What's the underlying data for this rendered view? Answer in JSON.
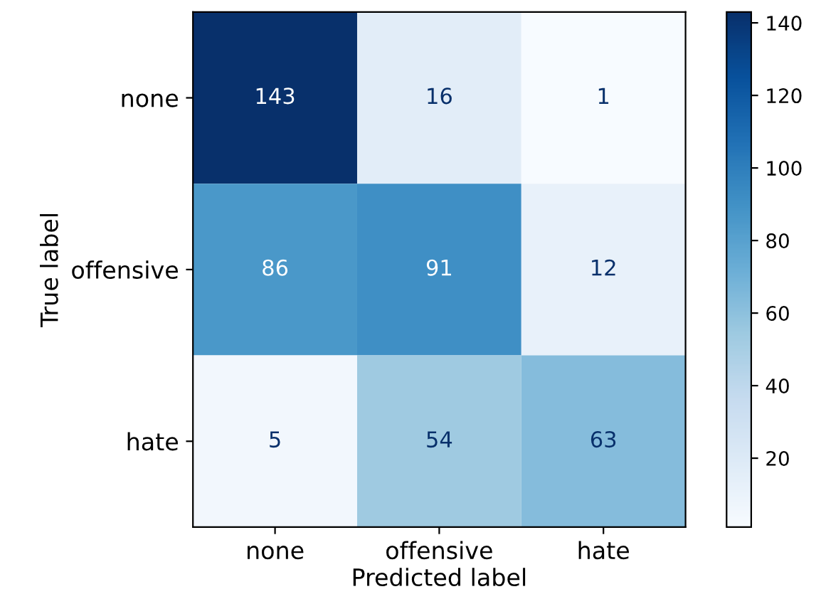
{
  "chart_data": {
    "type": "heatmap",
    "xlabel": "Predicted label",
    "ylabel": "True label",
    "categories": [
      "none",
      "offensive",
      "hate"
    ],
    "y_categories": [
      "none",
      "offensive",
      "hate"
    ],
    "cells": [
      [
        143,
        16,
        1
      ],
      [
        86,
        91,
        12
      ],
      [
        5,
        54,
        63
      ]
    ],
    "clim": [
      1,
      143
    ],
    "cticks": [
      20,
      40,
      60,
      80,
      100,
      120,
      140
    ],
    "data_labels": true,
    "grid": false
  }
}
